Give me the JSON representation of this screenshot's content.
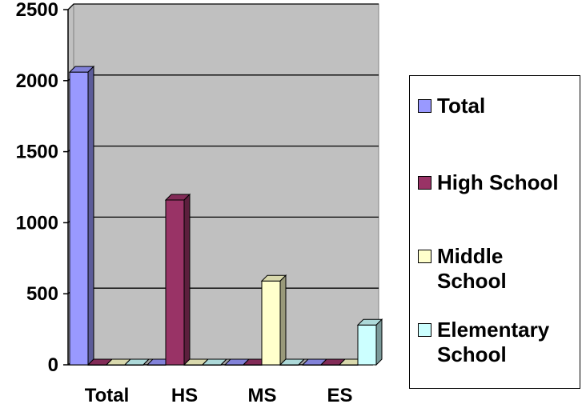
{
  "chart_data": {
    "type": "bar",
    "categories": [
      "Total",
      "HS",
      "MS",
      "ES"
    ],
    "series": [
      {
        "name": "Total",
        "values": [
          2060,
          0,
          0,
          0
        ],
        "color": "#9999ff"
      },
      {
        "name": "High School",
        "values": [
          0,
          1160,
          0,
          0
        ],
        "color": "#993366"
      },
      {
        "name": "Middle\nSchool",
        "values": [
          0,
          0,
          590,
          0
        ],
        "color": "#ffffcc"
      },
      {
        "name": "Elementary\nSchool",
        "values": [
          0,
          0,
          0,
          280
        ],
        "color": "#ccffff"
      }
    ],
    "y_ticks": [
      "0",
      "500",
      "1000",
      "1500",
      "2000",
      "2500"
    ],
    "ylim": [
      0,
      2500
    ],
    "grid": true,
    "legend_position": "right",
    "plot_background": "#c0c0c0"
  }
}
